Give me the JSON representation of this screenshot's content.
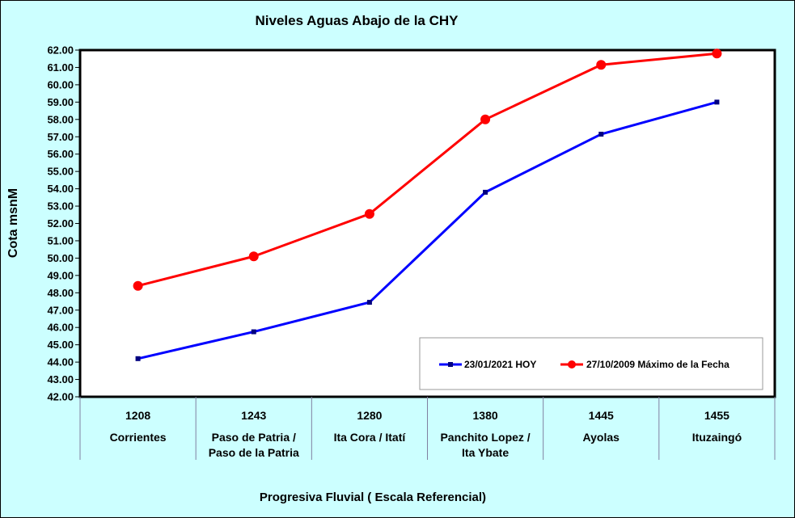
{
  "chart_data": {
    "type": "line",
    "title": "Niveles Aguas Abajo de la CHY",
    "ylabel": "Cota msnM",
    "xlabel": "Progresiva Fluvial ( Escala Referencial)",
    "ylim": [
      42.0,
      62.0
    ],
    "ytick_step": 1.0,
    "yticks": [
      "42.00",
      "43.00",
      "44.00",
      "45.00",
      "46.00",
      "47.00",
      "48.00",
      "49.00",
      "50.00",
      "51.00",
      "52.00",
      "53.00",
      "54.00",
      "55.00",
      "56.00",
      "57.00",
      "58.00",
      "59.00",
      "60.00",
      "61.00",
      "62.00"
    ],
    "grid": false,
    "legend_position": "bottom-right",
    "categories": [
      {
        "progresiva": "1208",
        "name_line1": "Corrientes",
        "name_line2": ""
      },
      {
        "progresiva": "1243",
        "name_line1": "Paso de Patria /",
        "name_line2": "Paso de la Patria"
      },
      {
        "progresiva": "1280",
        "name_line1": "Ita Cora / Itatí",
        "name_line2": ""
      },
      {
        "progresiva": "1380",
        "name_line1": "Panchito Lopez /",
        "name_line2": "Ita Ybate"
      },
      {
        "progresiva": "1445",
        "name_line1": "Ayolas",
        "name_line2": ""
      },
      {
        "progresiva": "1455",
        "name_line1": "Ituzaingó",
        "name_line2": ""
      }
    ],
    "series": [
      {
        "name": "23/01/2021 HOY",
        "color": "#0000ff",
        "marker": "square",
        "values": [
          44.2,
          45.75,
          47.45,
          53.8,
          57.15,
          59.0
        ]
      },
      {
        "name": "27/10/2009 Máximo de la Fecha",
        "color": "#ff0000",
        "marker": "circle",
        "values": [
          48.4,
          50.1,
          52.55,
          58.0,
          61.15,
          61.8
        ]
      }
    ]
  }
}
